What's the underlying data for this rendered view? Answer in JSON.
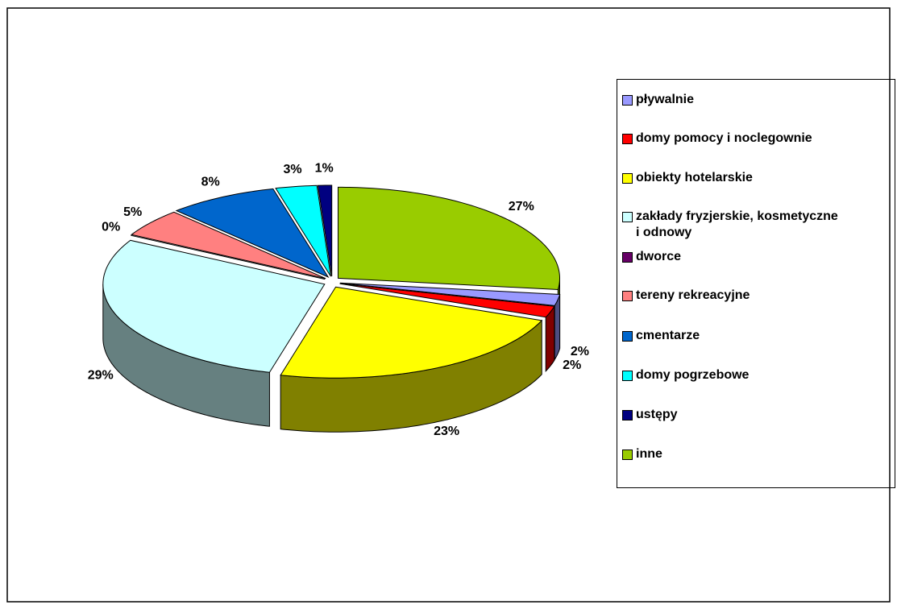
{
  "chart_data": {
    "type": "pie",
    "categories": [
      "pływalnie",
      "domy pomocy i noclegownie",
      "obiekty hotelarskie",
      "zakłady fryzjerskie, kosmetyczne i odnowy",
      "dworce",
      "tereny rekreacyjne",
      "cmentarze",
      "domy pogrzebowe",
      "ustępy",
      "inne"
    ],
    "values": [
      2,
      2,
      23,
      29,
      0,
      5,
      8,
      3,
      1,
      27
    ],
    "value_labels": [
      "2%",
      "2%",
      "23%",
      "29%",
      "0%",
      "5%",
      "8%",
      "3%",
      "1%",
      "27%"
    ],
    "colors": [
      "#9999ff",
      "#ff0000",
      "#ffff00",
      "#ccffff",
      "#660066",
      "#ff8080",
      "#0066cc",
      "#00ffff",
      "#000080",
      "#99cc00"
    ],
    "legend": "right"
  }
}
